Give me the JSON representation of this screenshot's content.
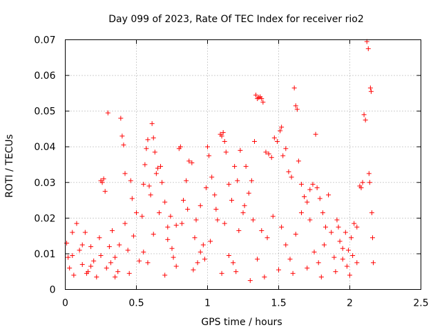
{
  "chart_data": {
    "type": "scatter",
    "title": "Day 099 of 2023, Rate Of TEC Index for receiver rio2",
    "xlabel": "GPS time / hours",
    "ylabel": "ROTI / TECUs",
    "xlim": [
      0,
      2.5
    ],
    "ylim": [
      0,
      0.07
    ],
    "xticks": [
      0,
      0.5,
      1,
      1.5,
      2,
      2.5
    ],
    "xtick_labels": [
      "0",
      "0.5",
      "1",
      "1.5",
      "2",
      "2.5"
    ],
    "yticks": [
      0,
      0.01,
      0.02,
      0.03,
      0.04,
      0.05,
      0.06,
      0.07
    ],
    "ytick_labels": [
      "0",
      "0.01",
      "0.02",
      "0.03",
      "0.04",
      "0.05",
      "0.06",
      "0.07"
    ],
    "grid": true,
    "marker": "+",
    "color": "#ff0000",
    "series": [
      {
        "name": "rio2",
        "points": [
          [
            0.01,
            0.013
          ],
          [
            0.02,
            0.009
          ],
          [
            0.03,
            0.006
          ],
          [
            0.05,
            0.016
          ],
          [
            0.06,
            0.004
          ],
          [
            0.08,
            0.0185
          ],
          [
            0.1,
            0.011
          ],
          [
            0.12,
            0.007
          ],
          [
            0.14,
            0.016
          ],
          [
            0.16,
            0.005
          ],
          [
            0.18,
            0.012
          ],
          [
            0.2,
            0.008
          ],
          [
            0.22,
            0.0035
          ],
          [
            0.24,
            0.0145
          ],
          [
            0.25,
            0.0305
          ],
          [
            0.26,
            0.03
          ],
          [
            0.27,
            0.031
          ],
          [
            0.28,
            0.0275
          ],
          [
            0.29,
            0.006
          ],
          [
            0.3,
            0.0495
          ],
          [
            0.31,
            0.012
          ],
          [
            0.33,
            0.0165
          ],
          [
            0.35,
            0.009
          ],
          [
            0.37,
            0.005
          ],
          [
            0.39,
            0.048
          ],
          [
            0.4,
            0.043
          ],
          [
            0.41,
            0.0405
          ],
          [
            0.42,
            0.0325
          ],
          [
            0.44,
            0.011
          ],
          [
            0.46,
            0.0305
          ],
          [
            0.47,
            0.0255
          ],
          [
            0.48,
            0.015
          ],
          [
            0.5,
            0.0215
          ],
          [
            0.52,
            0.008
          ],
          [
            0.54,
            0.0205
          ],
          [
            0.55,
            0.0295
          ],
          [
            0.56,
            0.035
          ],
          [
            0.57,
            0.0395
          ],
          [
            0.58,
            0.042
          ],
          [
            0.59,
            0.029
          ],
          [
            0.6,
            0.0265
          ],
          [
            0.61,
            0.0465
          ],
          [
            0.62,
            0.0425
          ],
          [
            0.63,
            0.0385
          ],
          [
            0.64,
            0.0325
          ],
          [
            0.65,
            0.034
          ],
          [
            0.67,
            0.0345
          ],
          [
            0.68,
            0.03
          ],
          [
            0.7,
            0.0245
          ],
          [
            0.72,
            0.014
          ],
          [
            0.74,
            0.0205
          ],
          [
            0.76,
            0.009
          ],
          [
            0.78,
            0.018
          ],
          [
            0.8,
            0.0395
          ],
          [
            0.81,
            0.04
          ],
          [
            0.83,
            0.025
          ],
          [
            0.85,
            0.0305
          ],
          [
            0.87,
            0.036
          ],
          [
            0.89,
            0.0355
          ],
          [
            0.91,
            0.0145
          ],
          [
            0.93,
            0.0075
          ],
          [
            0.95,
            0.0235
          ],
          [
            0.97,
            0.0125
          ],
          [
            0.99,
            0.0285
          ],
          [
            1.0,
            0.04
          ],
          [
            1.01,
            0.0375
          ],
          [
            1.03,
            0.0315
          ],
          [
            1.05,
            0.0265
          ],
          [
            1.07,
            0.0195
          ],
          [
            1.09,
            0.0435
          ],
          [
            1.1,
            0.043
          ],
          [
            1.11,
            0.044
          ],
          [
            1.12,
            0.0415
          ],
          [
            1.13,
            0.0385
          ],
          [
            1.15,
            0.0295
          ],
          [
            1.17,
            0.025
          ],
          [
            1.19,
            0.0345
          ],
          [
            1.21,
            0.0305
          ],
          [
            1.23,
            0.039
          ],
          [
            1.25,
            0.0215
          ],
          [
            1.27,
            0.0345
          ],
          [
            1.29,
            0.027
          ],
          [
            1.31,
            0.0305
          ],
          [
            1.33,
            0.0415
          ],
          [
            1.34,
            0.0545
          ],
          [
            1.35,
            0.0535
          ],
          [
            1.36,
            0.0538
          ],
          [
            1.37,
            0.054
          ],
          [
            1.38,
            0.0535
          ],
          [
            1.39,
            0.0525
          ],
          [
            1.41,
            0.0385
          ],
          [
            1.43,
            0.038
          ],
          [
            1.45,
            0.037
          ],
          [
            1.47,
            0.0425
          ],
          [
            1.49,
            0.0415
          ],
          [
            1.51,
            0.0445
          ],
          [
            1.52,
            0.0455
          ],
          [
            1.53,
            0.0375
          ],
          [
            1.55,
            0.0395
          ],
          [
            1.57,
            0.033
          ],
          [
            1.59,
            0.0315
          ],
          [
            1.61,
            0.0565
          ],
          [
            1.62,
            0.0515
          ],
          [
            1.63,
            0.0505
          ],
          [
            1.64,
            0.036
          ],
          [
            1.66,
            0.0295
          ],
          [
            1.68,
            0.026
          ],
          [
            1.7,
            0.0245
          ],
          [
            1.72,
            0.028
          ],
          [
            1.74,
            0.0295
          ],
          [
            1.76,
            0.0435
          ],
          [
            1.77,
            0.0285
          ],
          [
            1.79,
            0.0255
          ],
          [
            1.81,
            0.0215
          ],
          [
            1.83,
            0.0175
          ],
          [
            1.85,
            0.0265
          ],
          [
            1.87,
            0.016
          ],
          [
            1.89,
            0.009
          ],
          [
            1.91,
            0.0195
          ],
          [
            1.93,
            0.0135
          ],
          [
            1.95,
            0.0085
          ],
          [
            1.97,
            0.016
          ],
          [
            1.99,
            0.011
          ],
          [
            2.01,
            0.0145
          ],
          [
            2.03,
            0.0185
          ],
          [
            2.05,
            0.0175
          ],
          [
            2.07,
            0.029
          ],
          [
            2.08,
            0.0285
          ],
          [
            2.09,
            0.03
          ],
          [
            2.1,
            0.049
          ],
          [
            2.11,
            0.0475
          ],
          [
            2.12,
            0.0695
          ],
          [
            2.13,
            0.0675
          ],
          [
            2.135,
            0.0325
          ],
          [
            2.14,
            0.03
          ],
          [
            2.145,
            0.0565
          ],
          [
            2.15,
            0.0555
          ],
          [
            2.155,
            0.0215
          ],
          [
            2.16,
            0.0145
          ],
          [
            2.165,
            0.0075
          ],
          [
            2.0,
            0.004
          ],
          [
            1.9,
            0.005
          ],
          [
            1.8,
            0.0035
          ],
          [
            1.7,
            0.006
          ],
          [
            1.6,
            0.0045
          ],
          [
            1.5,
            0.0055
          ],
          [
            1.4,
            0.0035
          ],
          [
            1.3,
            0.0025
          ],
          [
            1.2,
            0.005
          ],
          [
            1.1,
            0.0045
          ],
          [
            0.9,
            0.0055
          ],
          [
            0.7,
            0.004
          ],
          [
            0.45,
            0.0045
          ],
          [
            0.35,
            0.0035
          ],
          [
            0.15,
            0.0045
          ],
          [
            0.25,
            0.0095
          ],
          [
            0.55,
            0.0105
          ],
          [
            0.75,
            0.0115
          ],
          [
            0.95,
            0.0105
          ],
          [
            1.15,
            0.0095
          ],
          [
            1.35,
            0.0085
          ],
          [
            1.55,
            0.0125
          ],
          [
            1.75,
            0.0105
          ],
          [
            1.95,
            0.0115
          ],
          [
            2.05,
            0.0075
          ],
          [
            0.12,
            0.0125
          ],
          [
            0.32,
            0.0075
          ],
          [
            0.62,
            0.0155
          ],
          [
            0.82,
            0.0185
          ],
          [
            1.02,
            0.0135
          ],
          [
            1.22,
            0.0165
          ],
          [
            1.42,
            0.0145
          ],
          [
            1.62,
            0.0155
          ],
          [
            1.82,
            0.0125
          ],
          [
            2.02,
            0.0095
          ],
          [
            0.05,
            0.0095
          ],
          [
            0.18,
            0.0065
          ],
          [
            0.38,
            0.0125
          ],
          [
            0.58,
            0.0075
          ],
          [
            0.78,
            0.0065
          ],
          [
            0.98,
            0.0085
          ],
          [
            1.18,
            0.0075
          ],
          [
            1.38,
            0.0165
          ],
          [
            1.58,
            0.0085
          ],
          [
            1.78,
            0.0075
          ],
          [
            1.98,
            0.0065
          ],
          [
            0.66,
            0.0215
          ],
          [
            0.86,
            0.0225
          ],
          [
            1.06,
            0.0225
          ],
          [
            1.26,
            0.0235
          ],
          [
            1.46,
            0.0205
          ],
          [
            1.66,
            0.0215
          ],
          [
            0.72,
            0.0175
          ],
          [
            0.92,
            0.0195
          ],
          [
            1.12,
            0.0185
          ],
          [
            1.32,
            0.0195
          ],
          [
            1.52,
            0.0175
          ],
          [
            1.72,
            0.0195
          ],
          [
            0.42,
            0.0185
          ],
          [
            1.92,
            0.0175
          ]
        ]
      }
    ]
  }
}
